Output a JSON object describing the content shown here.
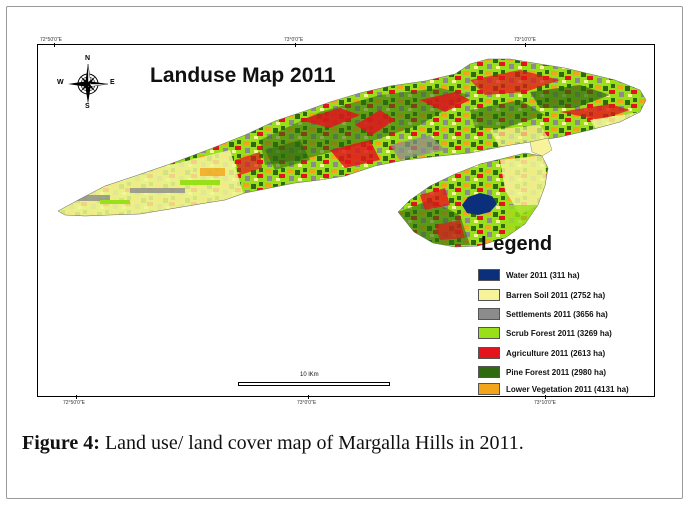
{
  "map": {
    "title": "Landuse Map 2011",
    "compass": {
      "n": "N",
      "s": "S",
      "e": "E",
      "w": "W"
    },
    "graticule_top": [
      "72°50'0\"E",
      "73°0'0\"E",
      "73°10'0\"E"
    ],
    "graticule_bottom": [
      "72°50'0\"E",
      "73°0'0\"E",
      "73°10'0\"E"
    ],
    "scale_label": "10 lKm",
    "legend": {
      "title": "Legend",
      "items": [
        {
          "label": "Water 2011 (311 ha)",
          "color": "#0b2f7a"
        },
        {
          "label": "Barren Soil 2011 (2752 ha)",
          "color": "#f6f39a"
        },
        {
          "label": "Settlements 2011 (3656 ha)",
          "color": "#8c8c8c"
        },
        {
          "label": "Scrub Forest 2011 (3269 ha)",
          "color": "#99e01a"
        },
        {
          "label": "Agriculture 2011 (2613 ha)",
          "color": "#e3141c"
        },
        {
          "label": "Pine Forest 2011 (2980 ha)",
          "color": "#2f6a10"
        },
        {
          "label": "Lower Vegetation 2011 (4131 ha)",
          "color": "#f2a51a"
        }
      ]
    }
  },
  "caption": {
    "label": "Figure 4:",
    "text": " Land use/ land cover map of Margalla Hills in 2011."
  }
}
